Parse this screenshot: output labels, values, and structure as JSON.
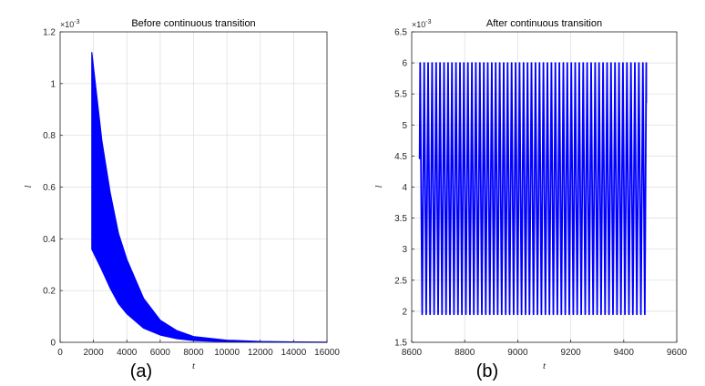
{
  "chart_data": [
    {
      "type": "area",
      "title": "Before continuous transition",
      "xlabel": "t",
      "ylabel": "l",
      "exponent_label": "×10",
      "exponent_power": "-3",
      "panel_label": "(a)",
      "xlim": [
        0,
        16000
      ],
      "ylim": [
        0,
        1.2
      ],
      "xticks": [
        "0",
        "2000",
        "4000",
        "6000",
        "8000",
        "10000",
        "12000",
        "14000",
        "16000"
      ],
      "yticks": [
        "0",
        "0.2",
        "0.4",
        "0.6",
        "0.8",
        "1",
        "1.2"
      ],
      "grid": true,
      "color": "#0000ff",
      "series": [
        {
          "x": [
            1900,
            2500,
            3000,
            3500,
            4000,
            5000,
            6000,
            7000,
            8000,
            10000,
            12000,
            14000,
            16000
          ],
          "upper": [
            1.12,
            0.78,
            0.58,
            0.42,
            0.32,
            0.17,
            0.085,
            0.045,
            0.022,
            0.008,
            0.003,
            0.0015,
            0.0008
          ],
          "lower": [
            0.36,
            0.28,
            0.21,
            0.15,
            0.11,
            0.055,
            0.028,
            0.014,
            0.007,
            0.002,
            0.0008,
            0.0003,
            0.0001
          ]
        }
      ]
    },
    {
      "type": "line",
      "title": "After continuous transition",
      "xlabel": "t",
      "ylabel": "l",
      "exponent_label": "×10",
      "exponent_power": "-3",
      "panel_label": "(b)",
      "xlim": [
        8600,
        9600
      ],
      "ylim": [
        1.5,
        6.5
      ],
      "xticks": [
        "8600",
        "8800",
        "9000",
        "9200",
        "9400",
        "9600"
      ],
      "yticks": [
        "1.5",
        "2",
        "2.5",
        "3",
        "3.5",
        "4",
        "4.5",
        "5",
        "5.5",
        "6",
        "6.5"
      ],
      "grid": true,
      "color": "#0000ff",
      "series": [
        {
          "t_start": 8630,
          "t_end": 9485,
          "y_start": 4.45,
          "y_end": 5.35,
          "max": 6.0,
          "min": 1.95,
          "period": 15
        }
      ]
    }
  ]
}
